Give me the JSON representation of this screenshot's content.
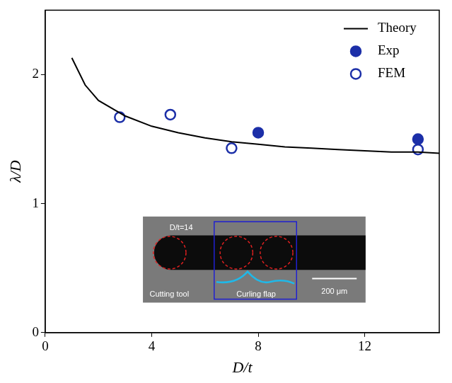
{
  "chart_data": {
    "type": "line",
    "x_label": "D/t",
    "y_label": "λ/D",
    "xlim": [
      0,
      14.8
    ],
    "xticks": [
      0,
      4,
      8,
      12
    ],
    "ylim": [
      0,
      2.5
    ],
    "yticks": [
      0,
      1,
      2
    ],
    "grid": false,
    "legend": "upper right",
    "series": [
      {
        "name": "Theory",
        "type": "line",
        "color": "#000000",
        "line_style": "solid",
        "x": [
          1,
          1.5,
          2,
          3,
          4,
          5,
          6,
          7,
          8,
          9,
          10,
          11,
          12,
          13,
          14,
          14.8
        ],
        "values": [
          2.13,
          1.92,
          1.8,
          1.68,
          1.6,
          1.55,
          1.51,
          1.48,
          1.46,
          1.44,
          1.43,
          1.42,
          1.41,
          1.4,
          1.4,
          1.39
        ]
      },
      {
        "name": "Exp",
        "type": "scatter",
        "color": "#1c2fa8",
        "marker": "filled_circle",
        "x": [
          8,
          14
        ],
        "values": [
          1.55,
          1.5
        ]
      },
      {
        "name": "FEM",
        "type": "scatter",
        "color": "#1c2fa8",
        "marker": "open_circle",
        "x": [
          2.8,
          4.7,
          7.0,
          14.0
        ],
        "values": [
          1.67,
          1.69,
          1.43,
          1.42
        ]
      }
    ],
    "annotations": [
      "D/t=14",
      "Cutting tool",
      "Curling flap",
      "200 μm"
    ]
  }
}
